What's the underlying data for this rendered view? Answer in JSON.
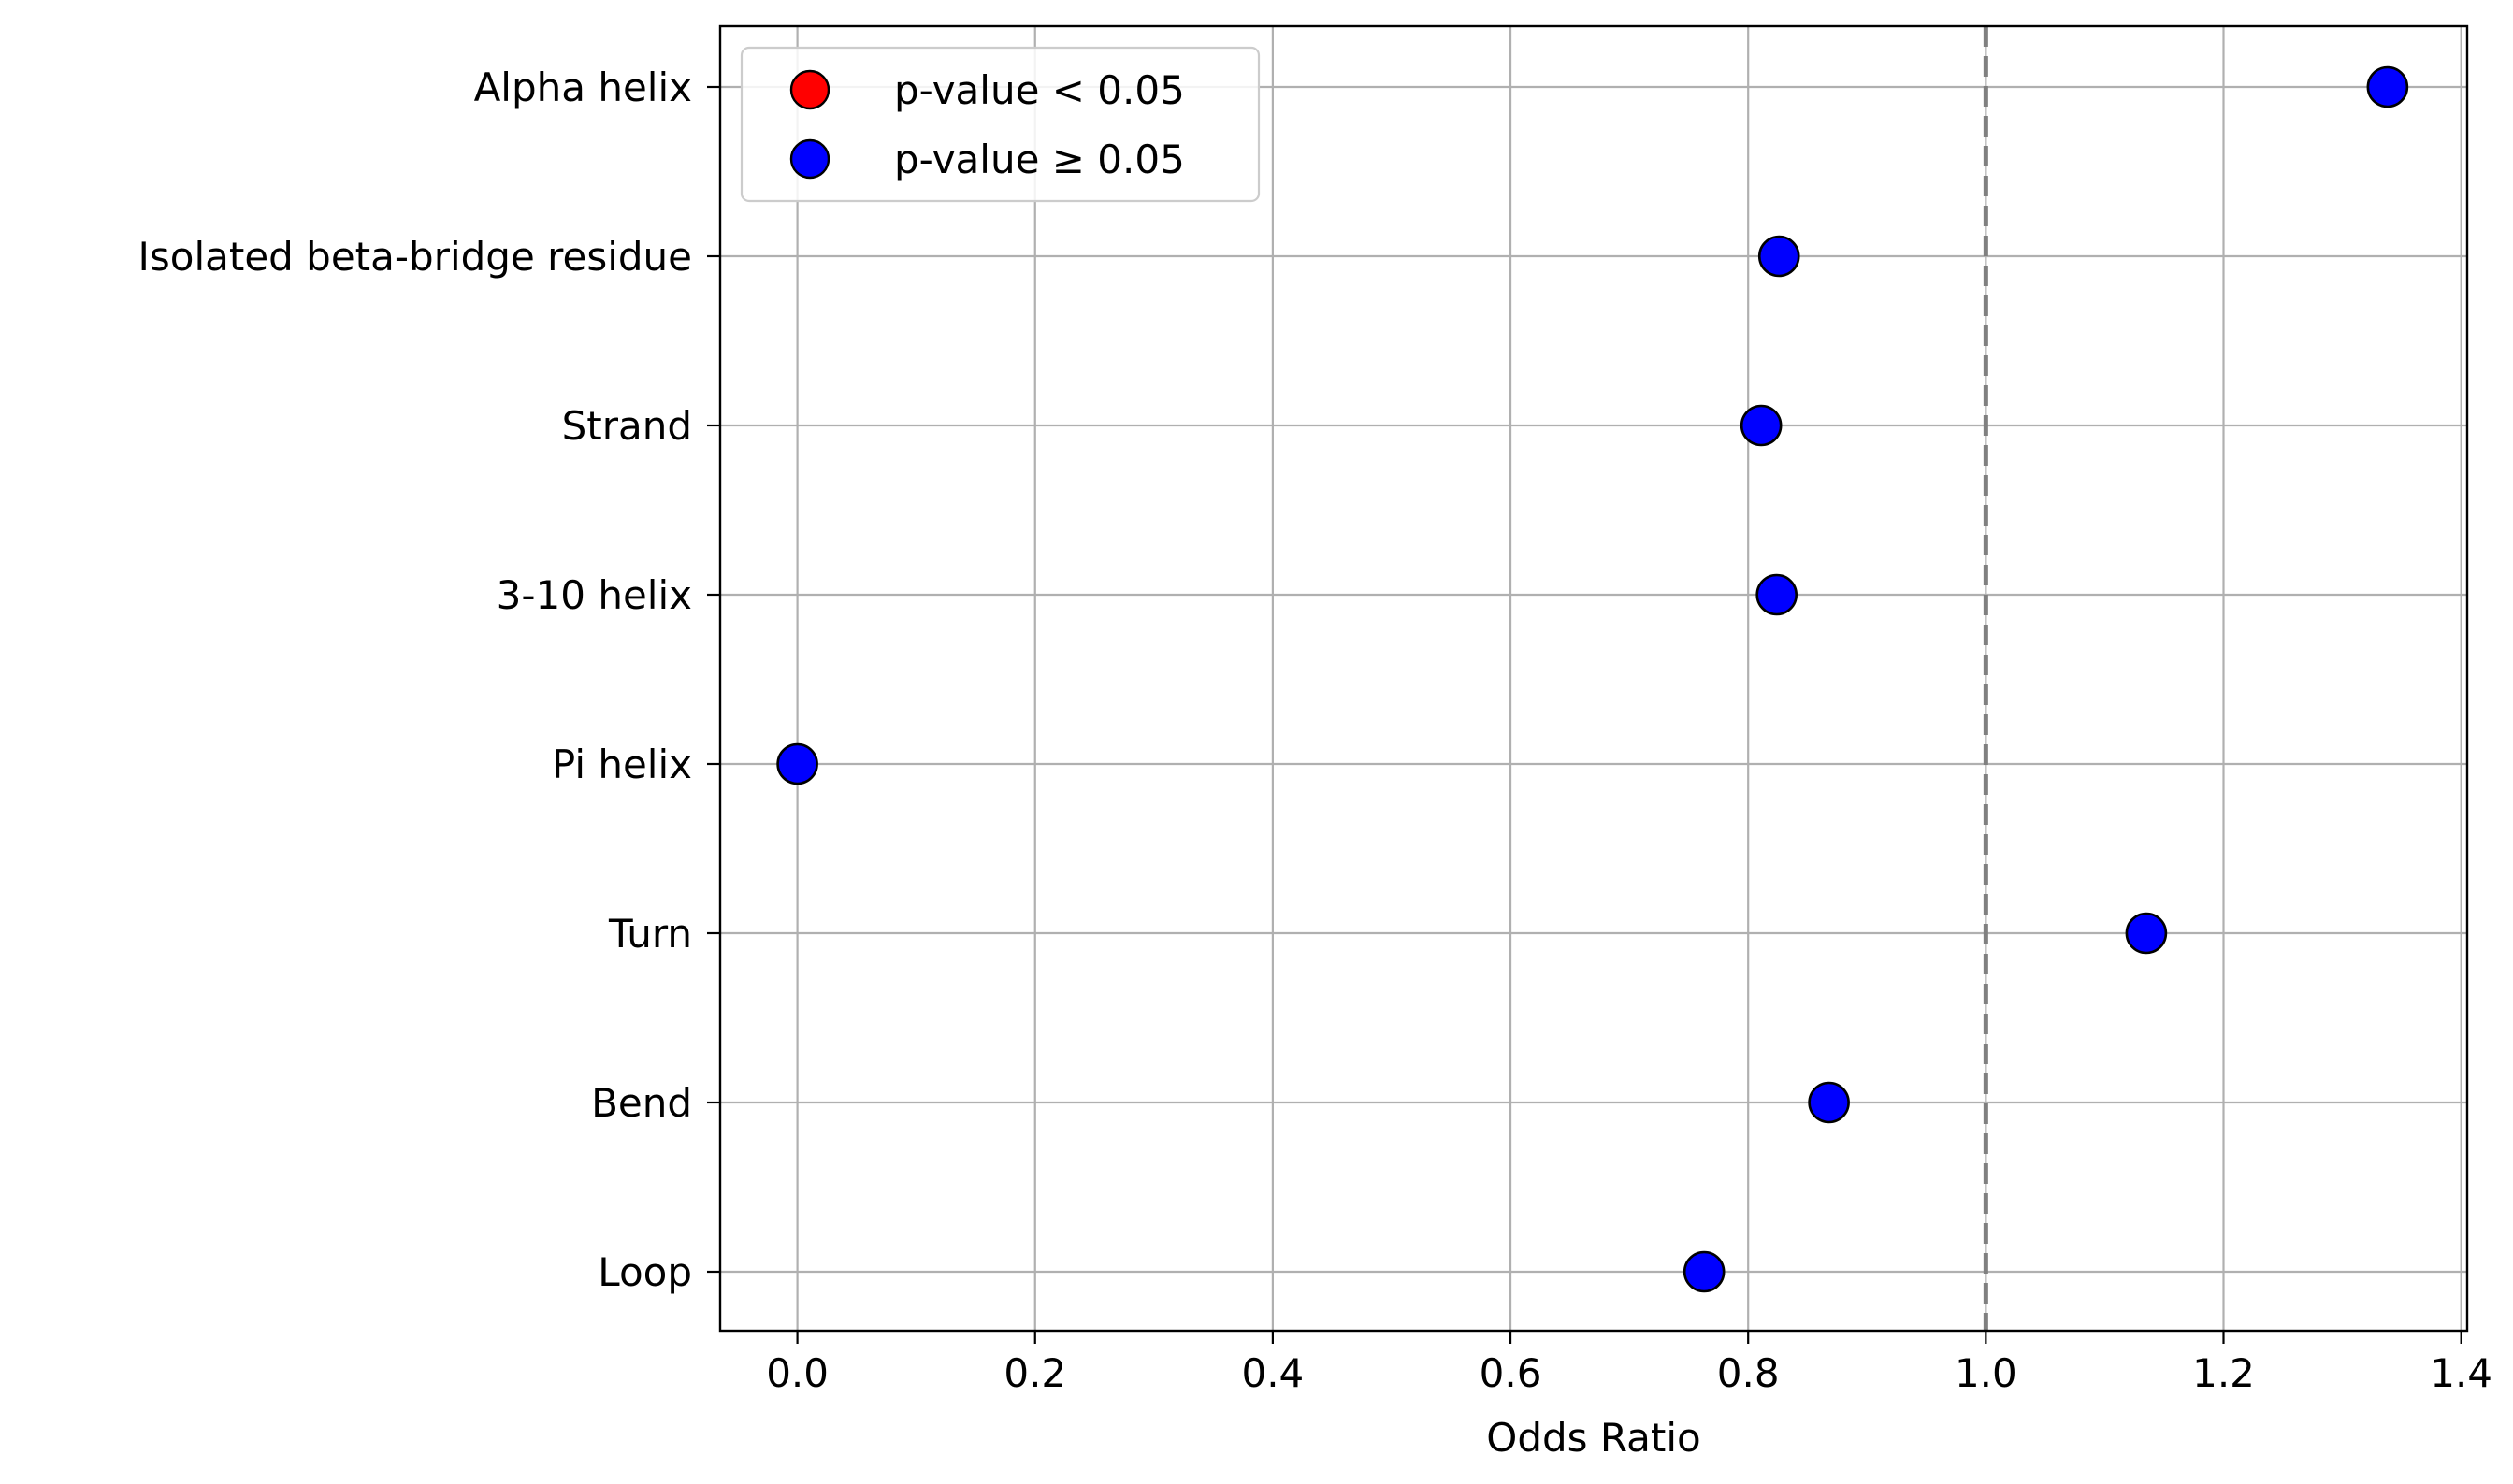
{
  "chart_data": {
    "type": "scatter",
    "title": "",
    "xlabel": "Odds Ratio",
    "ylabel": "",
    "xlim": [
      -0.065,
      1.405
    ],
    "x_ticks": [
      0.0,
      0.2,
      0.4,
      0.6,
      0.8,
      1.0,
      1.2,
      1.4
    ],
    "x_tick_labels": [
      "0.0",
      "0.2",
      "0.4",
      "0.6",
      "0.8",
      "1.0",
      "1.2",
      "1.4"
    ],
    "categories": [
      "Alpha helix",
      "Isolated beta-bridge residue",
      "Strand",
      "3-10 helix",
      "Pi helix",
      "Turn",
      "Bend",
      "Loop"
    ],
    "values": [
      1.338,
      0.826,
      0.811,
      0.824,
      0.0,
      1.135,
      0.868,
      0.763
    ],
    "significant": [
      false,
      false,
      false,
      false,
      false,
      false,
      false,
      false
    ],
    "reference_line": {
      "x": 1.0,
      "style": "dashed",
      "color": "#808080"
    },
    "grid": true,
    "legend": {
      "placement": "top-left",
      "entries": [
        {
          "label": "p-value < 0.05",
          "color": "#ff0000"
        },
        {
          "label": "p-value ≥ 0.05",
          "color": "#0000ff"
        }
      ]
    },
    "colors": {
      "significant": "#ff0000",
      "not_significant": "#0000ff",
      "edge": "#000000"
    }
  }
}
